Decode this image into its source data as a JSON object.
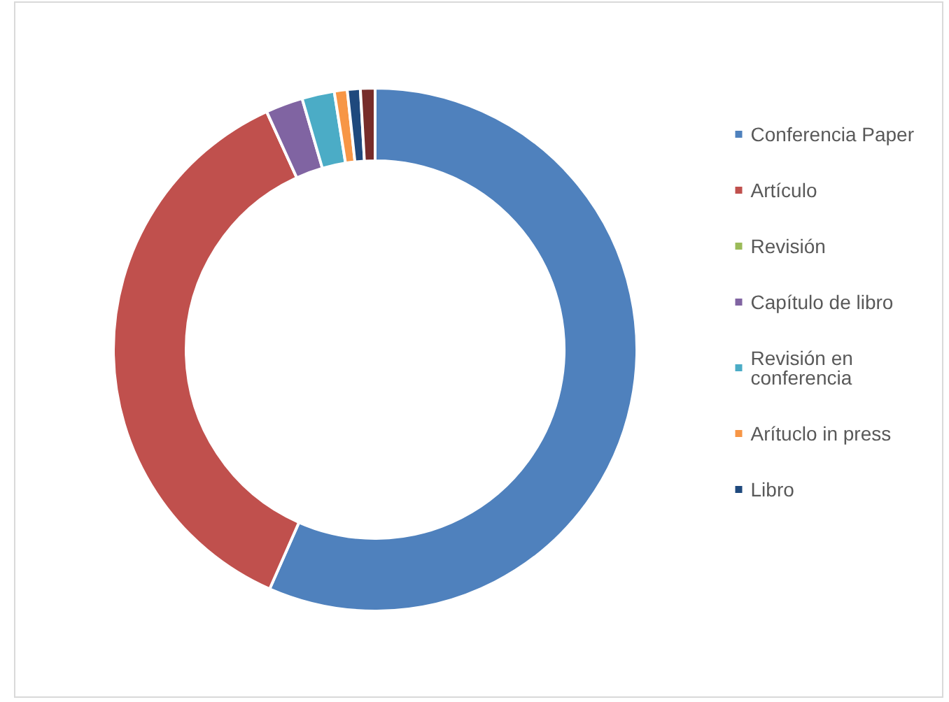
{
  "chart_data": {
    "type": "donut",
    "categories": [
      "Conferencia Paper",
      "Artículo",
      "Revisión",
      "Capítulo de libro",
      "Revisión en conferencia",
      "Arítuclo in press",
      "Libro",
      null
    ],
    "values": [
      56.6,
      36.6,
      0,
      2.3,
      2.0,
      0.8,
      0.8,
      0.9
    ],
    "colors": [
      "#4f81bd",
      "#c0504d",
      "#9bbb59",
      "#8064a2",
      "#4bacc6",
      "#f79646",
      "#1f497d",
      "#772c2a"
    ],
    "legend": "right"
  }
}
